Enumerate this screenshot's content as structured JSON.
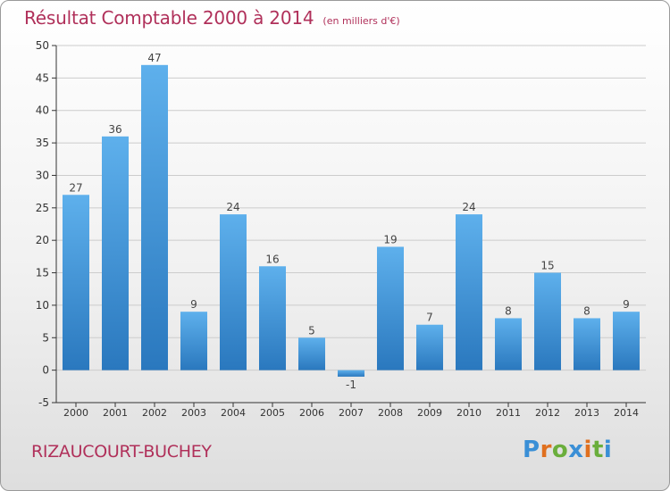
{
  "title": "Résultat Comptable 2000 à 2014",
  "unit_note": "(en milliers d'€)",
  "commune": "RIZAUCOURT-BUCHEY",
  "brand": "Proxiti",
  "colors": {
    "title": "#b0305a",
    "bar_light": "#5eb0ec",
    "bar_dark": "#2a78be",
    "grid": "#cccccc",
    "axis": "#333333",
    "brand_letters": [
      "#3a8fd6",
      "#e0701f",
      "#6aae3c",
      "#3a8fd6",
      "#e0701f",
      "#6aae3c",
      "#3a8fd6"
    ]
  },
  "chart_data": {
    "type": "bar",
    "categories": [
      "2000",
      "2001",
      "2002",
      "2003",
      "2004",
      "2005",
      "2006",
      "2007",
      "2008",
      "2009",
      "2010",
      "2011",
      "2012",
      "2013",
      "2014"
    ],
    "values": [
      27,
      36,
      47,
      9,
      24,
      16,
      5,
      -1,
      19,
      7,
      24,
      8,
      15,
      8,
      9
    ],
    "title": "Résultat Comptable 2000 à 2014",
    "ylim": [
      -5,
      50
    ],
    "yticks": [
      -5,
      0,
      5,
      10,
      15,
      20,
      25,
      30,
      35,
      40,
      45,
      50
    ],
    "grid": true,
    "data_labels": true
  }
}
